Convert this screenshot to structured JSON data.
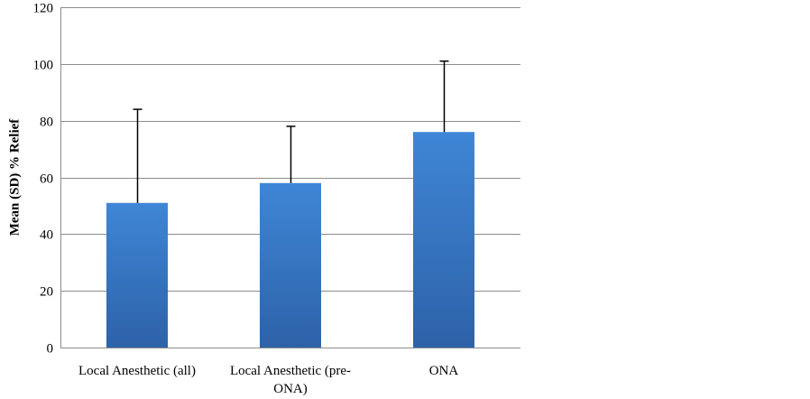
{
  "chart_data": {
    "type": "bar",
    "categories": [
      [
        "Local Anesthetic (all)"
      ],
      [
        "Local Anesthetic (pre-",
        "ONA)"
      ],
      [
        "ONA"
      ]
    ],
    "values": [
      51,
      58,
      76
    ],
    "error_upper": [
      84,
      78,
      101
    ],
    "ylabel": "Mean (SD) % Relief",
    "ylim": [
      0,
      120
    ],
    "yticks": [
      0,
      20,
      40,
      60,
      80,
      100,
      120
    ],
    "grid": true,
    "colors": {
      "bar_top": "#3f86d6",
      "bar_bottom": "#2d62a8",
      "grid": "#8c8c8c",
      "axis": "#8c8c8c",
      "error_bar": "#000000"
    }
  }
}
